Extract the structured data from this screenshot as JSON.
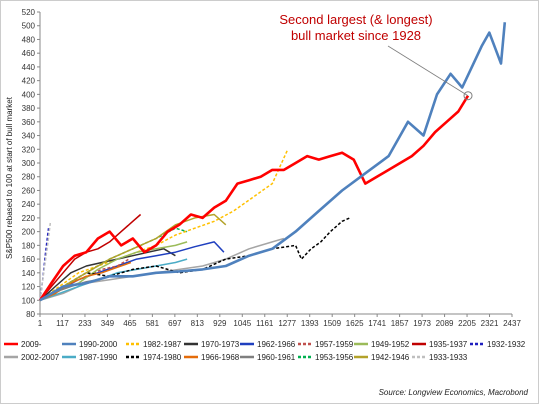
{
  "chart_data": {
    "type": "line",
    "title": "",
    "ylabel": "S&P500 rebased to 100 at start of bull market",
    "xlabel": "",
    "xlim": [
      1,
      2437
    ],
    "ylim": [
      80,
      520
    ],
    "x_ticks": [
      1,
      117,
      233,
      349,
      465,
      581,
      697,
      813,
      929,
      1045,
      1161,
      1277,
      1393,
      1509,
      1625,
      1741,
      1857,
      1973,
      2089,
      2205,
      2321,
      2437
    ],
    "y_ticks": [
      80,
      100,
      120,
      140,
      160,
      180,
      200,
      220,
      240,
      260,
      280,
      300,
      320,
      340,
      360,
      380,
      400,
      420,
      440,
      460,
      480,
      500,
      520
    ],
    "grid": false,
    "legend_position": "bottom",
    "annotation": {
      "line1": "Second largest (& longest)",
      "line2": "bull market since 1928",
      "point": [
        2210,
        398
      ]
    },
    "source": "Source: Longview Economics, Macrobond",
    "series": [
      {
        "name": "2009-",
        "color": "#ff0000",
        "dash": "solid",
        "width": 2.6,
        "points": [
          [
            1,
            100
          ],
          [
            60,
            125
          ],
          [
            120,
            150
          ],
          [
            180,
            165
          ],
          [
            240,
            170
          ],
          [
            300,
            190
          ],
          [
            360,
            200
          ],
          [
            420,
            180
          ],
          [
            480,
            190
          ],
          [
            540,
            170
          ],
          [
            600,
            180
          ],
          [
            660,
            200
          ],
          [
            720,
            210
          ],
          [
            780,
            225
          ],
          [
            840,
            220
          ],
          [
            900,
            235
          ],
          [
            960,
            245
          ],
          [
            1020,
            270
          ],
          [
            1080,
            275
          ],
          [
            1140,
            280
          ],
          [
            1200,
            290
          ],
          [
            1260,
            290
          ],
          [
            1320,
            300
          ],
          [
            1380,
            310
          ],
          [
            1440,
            305
          ],
          [
            1500,
            310
          ],
          [
            1560,
            315
          ],
          [
            1620,
            305
          ],
          [
            1680,
            270
          ],
          [
            1740,
            280
          ],
          [
            1800,
            290
          ],
          [
            1860,
            300
          ],
          [
            1920,
            310
          ],
          [
            1980,
            325
          ],
          [
            2040,
            345
          ],
          [
            2100,
            360
          ],
          [
            2160,
            375
          ],
          [
            2210,
            398
          ]
        ]
      },
      {
        "name": "1990-2000",
        "color": "#4f81bd",
        "dash": "solid",
        "width": 2.6,
        "points": [
          [
            1,
            100
          ],
          [
            120,
            120
          ],
          [
            240,
            125
          ],
          [
            360,
            135
          ],
          [
            480,
            135
          ],
          [
            600,
            140
          ],
          [
            720,
            142
          ],
          [
            840,
            145
          ],
          [
            960,
            150
          ],
          [
            1080,
            165
          ],
          [
            1200,
            175
          ],
          [
            1320,
            200
          ],
          [
            1440,
            230
          ],
          [
            1560,
            260
          ],
          [
            1680,
            285
          ],
          [
            1800,
            310
          ],
          [
            1900,
            360
          ],
          [
            1980,
            340
          ],
          [
            2050,
            400
          ],
          [
            2120,
            430
          ],
          [
            2180,
            410
          ],
          [
            2230,
            440
          ],
          [
            2280,
            470
          ],
          [
            2320,
            490
          ],
          [
            2360,
            460
          ],
          [
            2380,
            445
          ],
          [
            2400,
            505
          ]
        ]
      },
      {
        "name": "1982-1987",
        "color": "#ffc000",
        "dash": "dash",
        "width": 1.5,
        "points": [
          [
            1,
            100
          ],
          [
            100,
            120
          ],
          [
            200,
            140
          ],
          [
            300,
            150
          ],
          [
            400,
            160
          ],
          [
            500,
            170
          ],
          [
            600,
            180
          ],
          [
            700,
            195
          ],
          [
            800,
            205
          ],
          [
            900,
            215
          ],
          [
            1000,
            230
          ],
          [
            1100,
            250
          ],
          [
            1200,
            270
          ],
          [
            1280,
            320
          ]
        ]
      },
      {
        "name": "1970-1973",
        "color": "#333333",
        "dash": "solid",
        "width": 1.5,
        "points": [
          [
            1,
            100
          ],
          [
            80,
            120
          ],
          [
            160,
            140
          ],
          [
            240,
            150
          ],
          [
            320,
            155
          ],
          [
            400,
            160
          ],
          [
            480,
            165
          ],
          [
            560,
            170
          ],
          [
            640,
            175
          ],
          [
            700,
            165
          ]
        ]
      },
      {
        "name": "1962-1966",
        "color": "#1f3fbf",
        "dash": "solid",
        "width": 1.5,
        "points": [
          [
            1,
            100
          ],
          [
            100,
            115
          ],
          [
            200,
            130
          ],
          [
            300,
            140
          ],
          [
            400,
            150
          ],
          [
            500,
            160
          ],
          [
            600,
            165
          ],
          [
            700,
            170
          ],
          [
            800,
            178
          ],
          [
            900,
            185
          ],
          [
            950,
            170
          ]
        ]
      },
      {
        "name": "1957-1959",
        "color": "#c0504d",
        "dash": "dash",
        "width": 1.5,
        "points": [
          [
            1,
            100
          ],
          [
            80,
            110
          ],
          [
            160,
            125
          ],
          [
            240,
            135
          ],
          [
            320,
            145
          ],
          [
            400,
            150
          ],
          [
            460,
            160
          ]
        ]
      },
      {
        "name": "1949-1952",
        "color": "#9bbb59",
        "dash": "solid",
        "width": 1.5,
        "points": [
          [
            1,
            100
          ],
          [
            100,
            115
          ],
          [
            200,
            125
          ],
          [
            300,
            145
          ],
          [
            400,
            160
          ],
          [
            500,
            170
          ],
          [
            600,
            175
          ],
          [
            700,
            180
          ],
          [
            760,
            185
          ]
        ]
      },
      {
        "name": "1935-1937",
        "color": "#c00000",
        "dash": "solid",
        "width": 1.5,
        "points": [
          [
            1,
            100
          ],
          [
            60,
            120
          ],
          [
            120,
            140
          ],
          [
            180,
            160
          ],
          [
            240,
            170
          ],
          [
            300,
            175
          ],
          [
            360,
            185
          ],
          [
            420,
            200
          ],
          [
            480,
            215
          ],
          [
            520,
            225
          ]
        ]
      },
      {
        "name": "1932-1932",
        "color": "#1f1fbf",
        "dash": "dash",
        "width": 1.5,
        "points": [
          [
            1,
            100
          ],
          [
            15,
            130
          ],
          [
            30,
            170
          ],
          [
            45,
            205
          ]
        ]
      },
      {
        "name": "2002-2007",
        "color": "#a5a5a5",
        "dash": "solid",
        "width": 1.5,
        "points": [
          [
            1,
            100
          ],
          [
            120,
            110
          ],
          [
            240,
            125
          ],
          [
            360,
            130
          ],
          [
            480,
            135
          ],
          [
            600,
            140
          ],
          [
            720,
            145
          ],
          [
            840,
            150
          ],
          [
            960,
            160
          ],
          [
            1080,
            175
          ],
          [
            1200,
            185
          ],
          [
            1260,
            190
          ]
        ]
      },
      {
        "name": "1987-1990",
        "color": "#4bacc6",
        "dash": "solid",
        "width": 1.5,
        "points": [
          [
            1,
            100
          ],
          [
            100,
            110
          ],
          [
            200,
            120
          ],
          [
            300,
            130
          ],
          [
            400,
            140
          ],
          [
            500,
            145
          ],
          [
            600,
            150
          ],
          [
            700,
            155
          ],
          [
            760,
            160
          ]
        ]
      },
      {
        "name": "1974-1980",
        "color": "#000000",
        "dash": "dash",
        "width": 1.5,
        "points": [
          [
            1,
            100
          ],
          [
            120,
            120
          ],
          [
            240,
            140
          ],
          [
            360,
            135
          ],
          [
            480,
            145
          ],
          [
            600,
            150
          ],
          [
            720,
            140
          ],
          [
            840,
            145
          ],
          [
            960,
            160
          ],
          [
            1080,
            165
          ],
          [
            1200,
            175
          ],
          [
            1320,
            180
          ],
          [
            1350,
            160
          ],
          [
            1400,
            175
          ],
          [
            1450,
            185
          ],
          [
            1500,
            200
          ],
          [
            1560,
            215
          ],
          [
            1600,
            220
          ]
        ]
      },
      {
        "name": "1966-1968",
        "color": "#e46c0a",
        "dash": "solid",
        "width": 1.5,
        "points": [
          [
            1,
            100
          ],
          [
            80,
            110
          ],
          [
            160,
            125
          ],
          [
            240,
            135
          ],
          [
            320,
            140
          ],
          [
            400,
            148
          ],
          [
            470,
            155
          ]
        ]
      },
      {
        "name": "1960-1961",
        "color": "#7f7f7f",
        "dash": "solid",
        "width": 1.5,
        "points": [
          [
            1,
            100
          ],
          [
            80,
            112
          ],
          [
            160,
            120
          ],
          [
            240,
            127
          ],
          [
            300,
            130
          ],
          [
            360,
            135
          ]
        ]
      },
      {
        "name": "1953-1956",
        "color": "#00b050",
        "dash": "dash",
        "width": 1.5,
        "points": [
          [
            1,
            100
          ],
          [
            120,
            120
          ],
          [
            240,
            140
          ],
          [
            360,
            160
          ],
          [
            480,
            175
          ],
          [
            600,
            190
          ],
          [
            700,
            205
          ],
          [
            760,
            200
          ]
        ]
      },
      {
        "name": "1942-1946",
        "color": "#b3a22a",
        "dash": "solid",
        "width": 1.5,
        "points": [
          [
            1,
            100
          ],
          [
            120,
            120
          ],
          [
            240,
            140
          ],
          [
            360,
            160
          ],
          [
            480,
            175
          ],
          [
            600,
            190
          ],
          [
            700,
            210
          ],
          [
            800,
            220
          ],
          [
            900,
            225
          ],
          [
            960,
            210
          ]
        ]
      },
      {
        "name": "1933-1933",
        "color": "#bfbfbf",
        "dash": "dash",
        "width": 1.5,
        "points": [
          [
            1,
            100
          ],
          [
            20,
            140
          ],
          [
            40,
            180
          ],
          [
            55,
            215
          ]
        ]
      }
    ]
  }
}
